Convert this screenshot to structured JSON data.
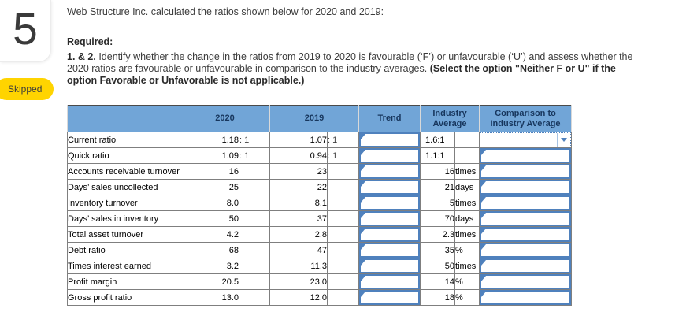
{
  "question": {
    "number": "5",
    "status": "Skipped"
  },
  "prompt": {
    "intro": "Web Structure Inc. calculated the ratios shown below for 2020 and 2019:",
    "required_label": "Required:",
    "items_label": "1. & 2.",
    "body": "Identify whether the change in the ratios from 2019 to 2020 is favourable (‘F’) or unfavourable (‘U’) and assess whether the 2020 ratios are favourable or unfavourable in comparison to the industry averages.",
    "highlight": "(Select the option \"Neither F or U\" if the option Favorable or Unfavorable is not applicable.)"
  },
  "table": {
    "headers": {
      "label": "",
      "y2020": "2020",
      "y2019": "2019",
      "trend": "Trend",
      "industry": "Industry Average",
      "comparison": "Comparison to Industry Average"
    },
    "rows": [
      {
        "label": "Current ratio",
        "v2020": "1.18",
        "u2020": ": 1",
        "v2019": "1.07",
        "u2019": ": 1",
        "industry": "1.6:1",
        "industry_unit": "",
        "ratio": true,
        "dropdown": true,
        "trend_value": "",
        "comparison_value": ""
      },
      {
        "label": "Quick ratio",
        "v2020": "1.09",
        "u2020": ": 1",
        "v2019": "0.94",
        "u2019": ": 1",
        "industry": "1.1:1",
        "industry_unit": "",
        "ratio": true,
        "dropdown": false,
        "trend_value": "",
        "comparison_value": ""
      },
      {
        "label": "Accounts receivable turnover",
        "v2020": "16",
        "u2020": "",
        "v2019": "23",
        "u2019": "",
        "industry": "16",
        "industry_unit": "times",
        "ratio": false,
        "dropdown": false,
        "trend_value": "",
        "comparison_value": ""
      },
      {
        "label": "Days’ sales uncollected",
        "v2020": "25",
        "u2020": "",
        "v2019": "22",
        "u2019": "",
        "industry": "21",
        "industry_unit": "days",
        "ratio": false,
        "dropdown": false,
        "trend_value": "",
        "comparison_value": ""
      },
      {
        "label": "Inventory turnover",
        "v2020": "8.0",
        "u2020": "",
        "v2019": "8.1",
        "u2019": "",
        "industry": "5",
        "industry_unit": "times",
        "ratio": false,
        "dropdown": false,
        "trend_value": "",
        "comparison_value": ""
      },
      {
        "label": "Days’ sales in inventory",
        "v2020": "50",
        "u2020": "",
        "v2019": "37",
        "u2019": "",
        "industry": "70",
        "industry_unit": "days",
        "ratio": false,
        "dropdown": false,
        "trend_value": "",
        "comparison_value": ""
      },
      {
        "label": "Total asset turnover",
        "v2020": "4.2",
        "u2020": "",
        "v2019": "2.8",
        "u2019": "",
        "industry": "2.3",
        "industry_unit": "times",
        "ratio": false,
        "dropdown": false,
        "trend_value": "",
        "comparison_value": ""
      },
      {
        "label": "Debt ratio",
        "v2020": "68",
        "u2020": "",
        "v2019": "47",
        "u2019": "",
        "industry": "35",
        "industry_unit": "%",
        "ratio": false,
        "dropdown": false,
        "trend_value": "",
        "comparison_value": ""
      },
      {
        "label": "Times interest earned",
        "v2020": "3.2",
        "u2020": "",
        "v2019": "11.3",
        "u2019": "",
        "industry": "50",
        "industry_unit": "times",
        "ratio": false,
        "dropdown": false,
        "trend_value": "",
        "comparison_value": ""
      },
      {
        "label": "Profit margin",
        "v2020": "20.5",
        "u2020": "",
        "v2019": "23.0",
        "u2019": "",
        "industry": "14",
        "industry_unit": "%",
        "ratio": false,
        "dropdown": false,
        "trend_value": "",
        "comparison_value": ""
      },
      {
        "label": "Gross profit ratio",
        "v2020": "13.0",
        "u2020": "",
        "v2019": "12.0",
        "u2019": "",
        "industry": "18",
        "industry_unit": "%",
        "ratio": false,
        "dropdown": false,
        "trend_value": "",
        "comparison_value": ""
      }
    ]
  },
  "icons": {
    "dropdown_arrow": "chevron-down",
    "cell_marker": "triangle-flag"
  },
  "colors": {
    "header_blue": "#71a5d7",
    "input_border_blue": "#4f81bd",
    "skipped_yellow": "#ffd400",
    "highlight_red": "#e60000"
  }
}
